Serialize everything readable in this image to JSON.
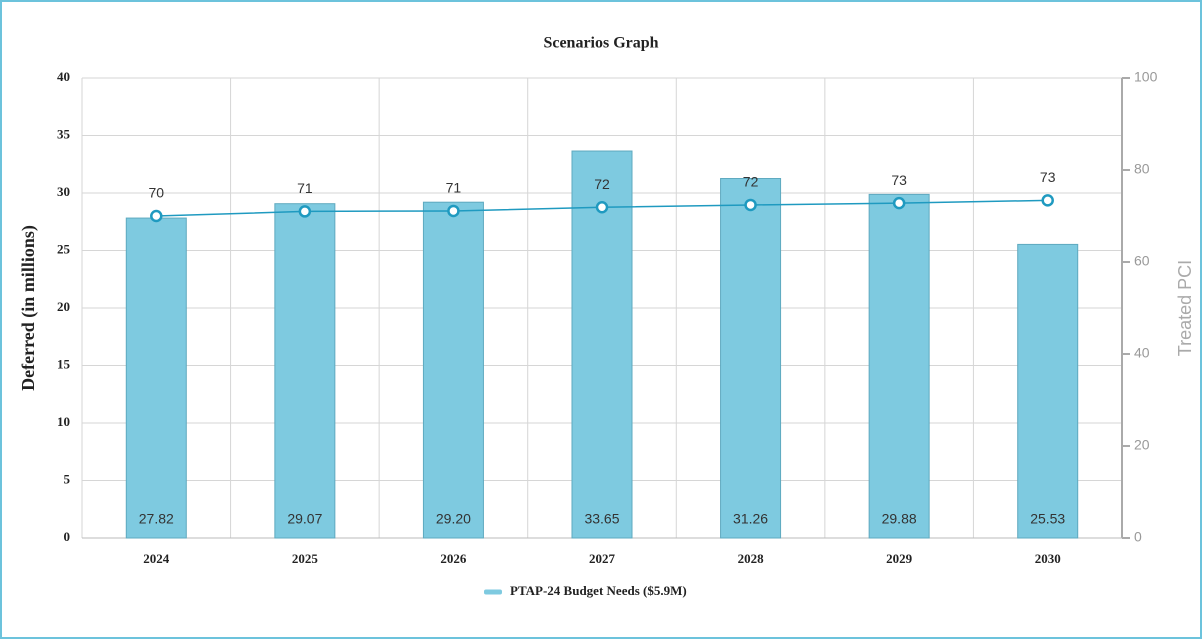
{
  "chart_data": {
    "type": "bar",
    "title": "Scenarios Graph",
    "y_label": "Deferred (in millions)",
    "y2_label": "Treated PCI",
    "categories": [
      "2024",
      "2025",
      "2026",
      "2027",
      "2028",
      "2029",
      "2030"
    ],
    "series": [
      {
        "name": "PTAP-24 Budget Needs ($5.9M)",
        "type": "bar",
        "color": "#7ecae0",
        "values": [
          27.82,
          29.07,
          29.2,
          33.65,
          31.26,
          29.88,
          25.53
        ],
        "value_labels": [
          "27.82",
          "29.07",
          "29.20",
          "33.65",
          "31.26",
          "29.88",
          "25.53"
        ]
      },
      {
        "type": "line",
        "axis": "y2",
        "color": "#1f9ac0",
        "values": [
          70,
          71,
          71.1,
          71.9,
          72.4,
          72.8,
          73.4
        ],
        "value_labels": [
          "70",
          "71",
          "71",
          "72",
          "72",
          "73",
          "73"
        ]
      }
    ],
    "ylim": [
      0,
      40
    ],
    "yticks": [
      0,
      5,
      10,
      15,
      20,
      25,
      30,
      35,
      40
    ],
    "y2lim": [
      0,
      100
    ],
    "y2ticks": [
      0,
      20,
      40,
      60,
      80,
      100
    ],
    "grid": true,
    "legend": "bottom"
  }
}
